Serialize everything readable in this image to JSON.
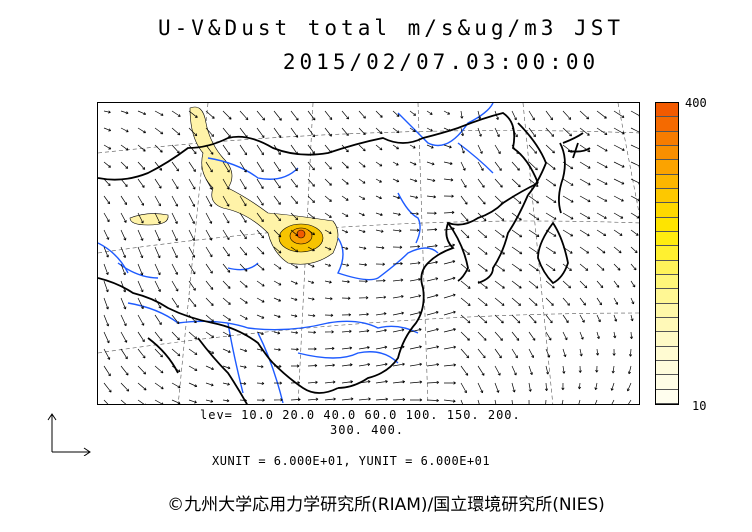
{
  "title": {
    "line1": "U-V&Dust total m/s&ug/m3 JST",
    "line2": "2015/02/07.03:00:00"
  },
  "levels": {
    "line1": "lev= 10.0 20.0 40.0 60.0 100. 150. 200.",
    "line2": "300. 400."
  },
  "units_text": "XUNIT = 6.000E+01, YUNIT = 6.000E+01",
  "credit": "©九州大学応用力学研究所(RIAM)/国立環境研究所(NIES)",
  "colorbar": {
    "max_label": "400",
    "min_label": "10",
    "colors": [
      "#f25a00",
      "#f56a00",
      "#f77c00",
      "#f98f00",
      "#fba300",
      "#fcb600",
      "#fdc800",
      "#fed800",
      "#fee400",
      "#ffec10",
      "#fff030",
      "#fff35a",
      "#fff67a",
      "#fff794",
      "#fff8a8",
      "#fff9b8",
      "#fffac6",
      "#fffbd2",
      "#fffcdc",
      "#fffde5",
      "#fffeee"
    ]
  },
  "map": {
    "coastline_color": "#000000",
    "river_color": "#1e5bff",
    "dust_fill": "#fff3a8",
    "dust_core": "#f7b400",
    "dust_peak": "#f25a00"
  }
}
